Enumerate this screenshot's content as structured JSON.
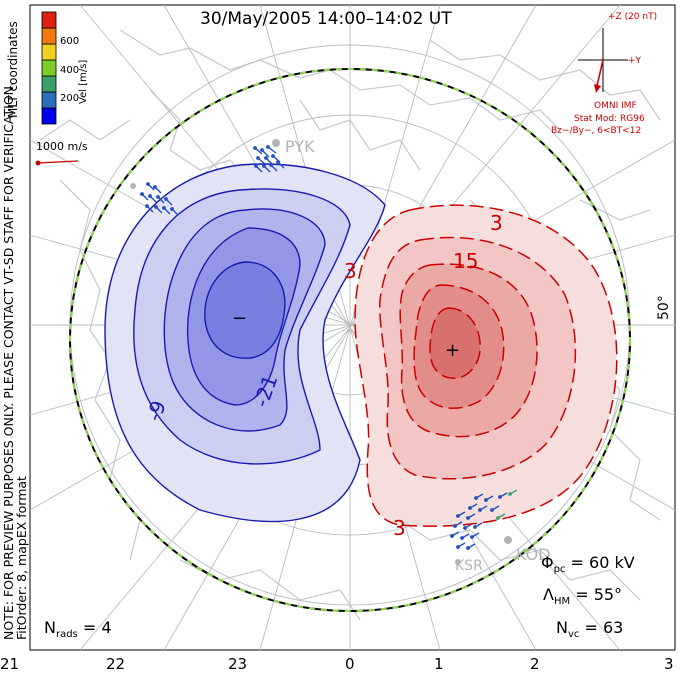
{
  "title": "30/May/2005 14:00–14:02 UT",
  "side_note": "NOTE: FOR PREVIEW PURPOSES ONLY. PLEASE CONTACT VT-SD STAFF FOR VERIFICATION.",
  "fit_order": "FitOrder: 8, mapEX format",
  "coords": "MLT coordinates",
  "colorbar": {
    "label": "Vel [m/s]",
    "ticks": [
      "600",
      "400",
      "200"
    ],
    "colors": [
      "#0000ee",
      "#2a6fb8",
      "#3aa06a",
      "#7ccc2a",
      "#f0d020",
      "#f07a10",
      "#e02010"
    ]
  },
  "scale": {
    "label": "1000 m/s"
  },
  "imf": {
    "z_label": "+Z (20 nT)",
    "y_label": "+Y",
    "source": "OMNI IMF",
    "model": "Stat Mod: RG96",
    "condition": "Bz−/By−, 6<BT<12"
  },
  "stations": [
    "PYK",
    "KOD",
    "KSR"
  ],
  "contours": {
    "negative": [
      "-9",
      "-21"
    ],
    "positive": [
      "3",
      "15",
      "3",
      "3"
    ]
  },
  "markers": {
    "min": "−",
    "max": "+"
  },
  "lat_label": "50°",
  "stats": {
    "phi_pc": {
      "symbol": "Φ",
      "sub": "pc",
      "value": "= 60 kV"
    },
    "lambda_hm": {
      "symbol": "Λ",
      "sub": "HM",
      "value": "= 55°"
    },
    "n_vc": {
      "symbol": "N",
      "sub": "vc",
      "value": "= 63"
    },
    "n_rads": {
      "symbol": "N",
      "sub": "rads",
      "value": "= 4"
    }
  },
  "mlt_ticks": [
    "21",
    "22",
    "23",
    "0",
    "1",
    "2",
    "3"
  ]
}
